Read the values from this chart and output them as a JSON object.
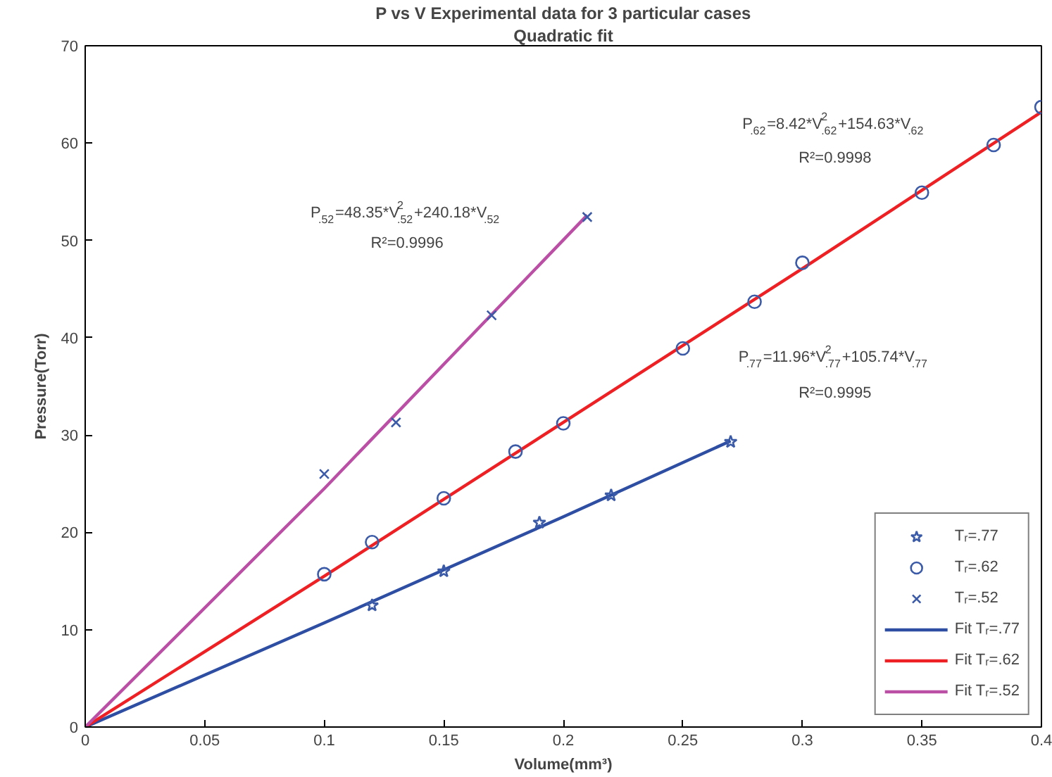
{
  "chart_data": {
    "type": "scatter",
    "title": "P vs V Experimental data for 3 particular cases",
    "subtitle": "Quadratic fit",
    "xlabel": "Volume(mm³)",
    "ylabel": "Pressure(Torr)",
    "xlim": [
      0,
      0.4
    ],
    "ylim": [
      0,
      70
    ],
    "xticks": [
      0,
      0.05,
      0.1,
      0.15,
      0.2,
      0.25,
      0.3,
      0.35,
      0.4
    ],
    "yticks": [
      0,
      10,
      20,
      30,
      40,
      50,
      60,
      70
    ],
    "grid": false,
    "legend": "bottom right",
    "series": [
      {
        "name": "Tᵣ=.77",
        "marker": "star",
        "color": "#3b5ba9",
        "x": [
          0.12,
          0.15,
          0.19,
          0.22,
          0.27
        ],
        "values": [
          12.5,
          16,
          21,
          23.8,
          29.3
        ]
      },
      {
        "name": "Tᵣ=.62",
        "marker": "circle",
        "color": "#3b5ba9",
        "x": [
          0.1,
          0.12,
          0.15,
          0.18,
          0.2,
          0.25,
          0.28,
          0.3,
          0.35,
          0.38,
          0.4
        ],
        "values": [
          15.7,
          19,
          23.5,
          28.3,
          31.2,
          38.9,
          43.7,
          47.7,
          54.9,
          59.8,
          63.7
        ]
      },
      {
        "name": "Tᵣ=.52",
        "marker": "cross",
        "color": "#3b5ba9",
        "x": [
          0.1,
          0.13,
          0.17,
          0.21
        ],
        "values": [
          26,
          31.3,
          42.3,
          52.4
        ]
      },
      {
        "name": "Fit Tᵣ=.77",
        "type": "line",
        "color": "#2e4ea3",
        "x": [
          0,
          0.1,
          0.2,
          0.27
        ],
        "values": [
          0,
          10.7,
          21.6,
          29.4
        ]
      },
      {
        "name": "Fit Tᵣ=.62",
        "type": "line",
        "color": "#ee2024",
        "x": [
          0,
          0.1,
          0.2,
          0.3,
          0.4
        ],
        "values": [
          0,
          15.5,
          31.3,
          47.1,
          63.2
        ]
      },
      {
        "name": "Fit Tᵣ=.52",
        "type": "line",
        "color": "#bb4fa5",
        "x": [
          0,
          0.1,
          0.21
        ],
        "values": [
          0,
          24.5,
          52.6
        ]
      }
    ],
    "annotations": [
      "P$_{.52}$=48.35*V$^{2}$$_{.52}$+240.18*V$_{.52}$",
      "R²=0.9996",
      "P$_{.62}$=8.42*V$^{2}$$_{.62}$+154.63*V$_{.62}$",
      "R²=0.9998",
      "P$_{.77}$=11.96*V$^{2}$$_{.77}$+105.74*V$_{.77}$",
      "R²=0.9995"
    ]
  }
}
